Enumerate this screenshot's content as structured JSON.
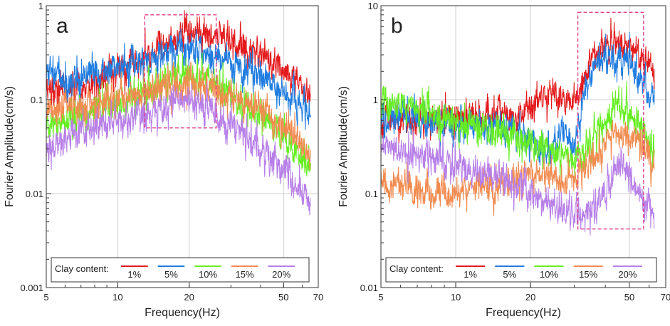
{
  "chart_data": [
    {
      "type": "line",
      "panel_label": "a",
      "xlabel": "Frequency(Hz)",
      "ylabel": "Fourier Amplitude(cm/s)",
      "xscale": "log",
      "yscale": "log",
      "xlim": [
        5,
        70
      ],
      "ylim": [
        0.001,
        1
      ],
      "x_ticks": [
        "5",
        "10",
        "20",
        "50",
        "70"
      ],
      "x_tick_values": [
        5,
        10,
        20,
        50,
        70
      ],
      "y_ticks": [
        "0.001",
        "0.01",
        "0.1",
        "1"
      ],
      "y_tick_values": [
        0.001,
        0.01,
        0.1,
        1
      ],
      "grid": true,
      "highlight_box": {
        "x": [
          13,
          26
        ],
        "y": [
          0.05,
          0.8
        ],
        "color": "#e0408a"
      },
      "legend": {
        "title": "Clay content:",
        "position": "bottom",
        "entries": [
          "1%",
          "5%",
          "10%",
          "15%",
          "20%"
        ]
      },
      "series": [
        {
          "name": "1%",
          "color": "#e41a1c",
          "x": [
            5,
            6,
            8,
            10,
            13,
            16,
            20,
            25,
            30,
            40,
            50,
            60,
            65
          ],
          "y": [
            0.12,
            0.13,
            0.16,
            0.2,
            0.28,
            0.4,
            0.55,
            0.5,
            0.4,
            0.3,
            0.2,
            0.14,
            0.1
          ]
        },
        {
          "name": "5%",
          "color": "#1f7de0",
          "x": [
            5,
            6,
            8,
            10,
            13,
            16,
            20,
            25,
            30,
            40,
            50,
            60,
            65
          ],
          "y": [
            0.19,
            0.16,
            0.18,
            0.21,
            0.26,
            0.32,
            0.35,
            0.3,
            0.25,
            0.18,
            0.12,
            0.09,
            0.07
          ]
        },
        {
          "name": "10%",
          "color": "#66ee22",
          "x": [
            5,
            6,
            8,
            10,
            13,
            16,
            20,
            25,
            30,
            40,
            50,
            60,
            65
          ],
          "y": [
            0.05,
            0.06,
            0.08,
            0.09,
            0.12,
            0.16,
            0.2,
            0.15,
            0.11,
            0.07,
            0.04,
            0.025,
            0.018
          ]
        },
        {
          "name": "15%",
          "color": "#f28b4f",
          "x": [
            5,
            6,
            8,
            10,
            13,
            16,
            20,
            25,
            30,
            40,
            50,
            60,
            65
          ],
          "y": [
            0.08,
            0.08,
            0.09,
            0.1,
            0.12,
            0.14,
            0.15,
            0.13,
            0.11,
            0.08,
            0.05,
            0.035,
            0.025
          ]
        },
        {
          "name": "20%",
          "color": "#b77fe8",
          "x": [
            5,
            6,
            8,
            10,
            13,
            16,
            20,
            25,
            30,
            40,
            50,
            60,
            65
          ],
          "y": [
            0.03,
            0.04,
            0.05,
            0.06,
            0.07,
            0.09,
            0.1,
            0.07,
            0.05,
            0.03,
            0.018,
            0.01,
            0.007
          ]
        }
      ]
    },
    {
      "type": "line",
      "panel_label": "b",
      "xlabel": "Frequency(Hz)",
      "ylabel": "Fourier Amplitude(cm/s)",
      "xscale": "log",
      "yscale": "log",
      "xlim": [
        5,
        70
      ],
      "ylim": [
        0.01,
        10
      ],
      "x_ticks": [
        "5",
        "10",
        "20",
        "50",
        "70"
      ],
      "x_tick_values": [
        5,
        10,
        20,
        50,
        70
      ],
      "y_ticks": [
        "0.01",
        "0.1",
        "1",
        "10"
      ],
      "y_tick_values": [
        0.01,
        0.1,
        1,
        10
      ],
      "grid": true,
      "highlight_box": {
        "x": [
          31,
          57
        ],
        "y": [
          0.042,
          8.5
        ],
        "color": "#e0408a"
      },
      "legend": {
        "title": "Clay content:",
        "position": "bottom",
        "entries": [
          "1%",
          "5%",
          "10%",
          "15%",
          "20%"
        ]
      },
      "series": [
        {
          "name": "1%",
          "color": "#e41a1c",
          "x": [
            5,
            7,
            10,
            14,
            18,
            20,
            24,
            27,
            30,
            33,
            36,
            40,
            45,
            50,
            55,
            60,
            63
          ],
          "y": [
            0.6,
            0.6,
            0.65,
            0.7,
            0.7,
            0.8,
            1.2,
            1.0,
            0.9,
            1.8,
            3.0,
            3.5,
            4.0,
            3.8,
            3.0,
            2.5,
            2.0
          ]
        },
        {
          "name": "5%",
          "color": "#1f7de0",
          "x": [
            5,
            7,
            10,
            14,
            18,
            20,
            24,
            27,
            30,
            33,
            36,
            40,
            45,
            50,
            55,
            60,
            63
          ],
          "y": [
            0.68,
            0.65,
            0.55,
            0.5,
            0.45,
            0.4,
            0.25,
            0.5,
            0.3,
            1.2,
            2.2,
            2.8,
            3.0,
            2.5,
            1.8,
            1.2,
            1.0
          ]
        },
        {
          "name": "10%",
          "color": "#66ee22",
          "x": [
            5,
            7,
            10,
            14,
            18,
            20,
            24,
            27,
            30,
            33,
            36,
            40,
            45,
            50,
            55,
            60,
            63
          ],
          "y": [
            1.0,
            0.8,
            0.6,
            0.45,
            0.38,
            0.34,
            0.28,
            0.24,
            0.22,
            0.28,
            0.4,
            0.6,
            0.9,
            0.7,
            0.5,
            0.35,
            0.3
          ]
        },
        {
          "name": "15%",
          "color": "#f28b4f",
          "x": [
            5,
            7,
            10,
            14,
            18,
            20,
            24,
            27,
            30,
            33,
            36,
            40,
            45,
            50,
            55,
            60,
            63
          ],
          "y": [
            0.13,
            0.11,
            0.1,
            0.12,
            0.15,
            0.16,
            0.15,
            0.14,
            0.13,
            0.18,
            0.25,
            0.35,
            0.45,
            0.42,
            0.35,
            0.25,
            0.2
          ]
        },
        {
          "name": "20%",
          "color": "#b77fe8",
          "x": [
            5,
            7,
            10,
            14,
            18,
            20,
            24,
            27,
            30,
            33,
            36,
            40,
            45,
            50,
            55,
            60,
            63
          ],
          "y": [
            0.3,
            0.25,
            0.2,
            0.15,
            0.12,
            0.1,
            0.08,
            0.07,
            0.06,
            0.06,
            0.07,
            0.1,
            0.22,
            0.15,
            0.1,
            0.07,
            0.06
          ]
        }
      ]
    }
  ]
}
